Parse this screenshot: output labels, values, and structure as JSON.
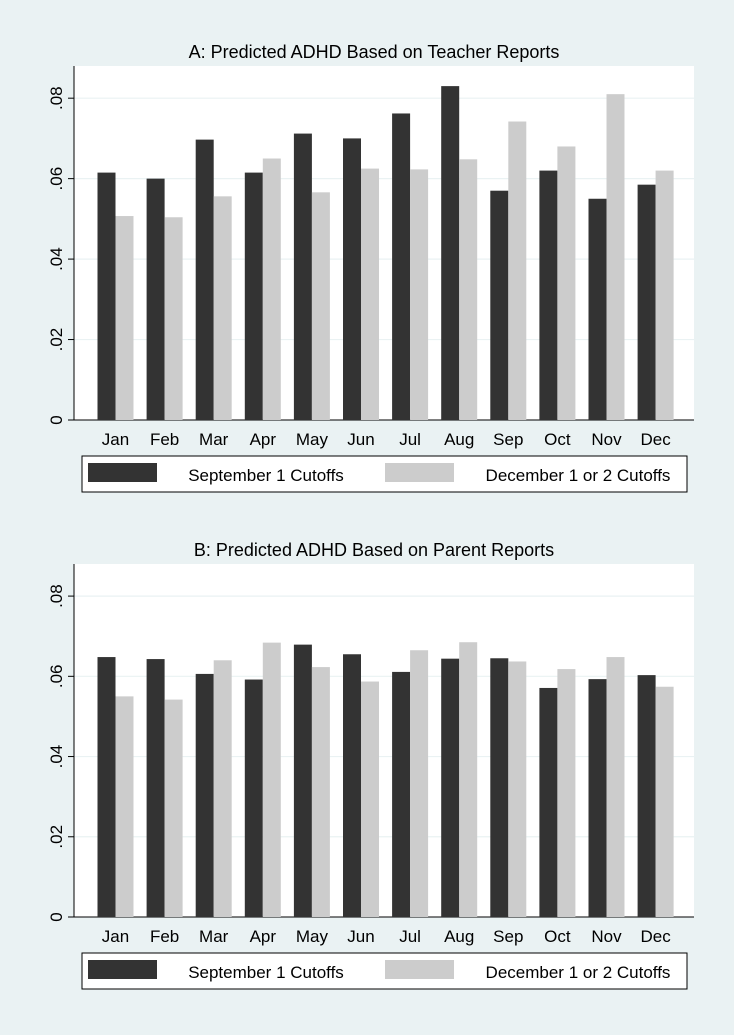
{
  "chart_data": [
    {
      "type": "bar",
      "title": "A: Predicted ADHD Based on Teacher Reports",
      "categories": [
        "Jan",
        "Feb",
        "Mar",
        "Apr",
        "May",
        "Jun",
        "Jul",
        "Aug",
        "Sep",
        "Oct",
        "Nov",
        "Dec"
      ],
      "ylim": [
        0,
        0.088
      ],
      "yticks": [
        0,
        0.02,
        0.04,
        0.06,
        0.08
      ],
      "ytick_labels": [
        "0",
        ".02",
        ".04",
        ".06",
        ".08"
      ],
      "grid": true,
      "legend_position": "bottom",
      "series": [
        {
          "name": "September 1 Cutoffs",
          "color": "#333333",
          "values": [
            0.0615,
            0.06,
            0.0697,
            0.0615,
            0.0712,
            0.07,
            0.0762,
            0.083,
            0.057,
            0.062,
            0.055,
            0.0585
          ]
        },
        {
          "name": "December 1 or 2 Cutoffs",
          "color": "#cccccc",
          "values": [
            0.0507,
            0.0504,
            0.0556,
            0.065,
            0.0566,
            0.0625,
            0.0623,
            0.0648,
            0.0742,
            0.068,
            0.081,
            0.062
          ]
        }
      ]
    },
    {
      "type": "bar",
      "title": "B: Predicted ADHD Based on Parent Reports",
      "categories": [
        "Jan",
        "Feb",
        "Mar",
        "Apr",
        "May",
        "Jun",
        "Jul",
        "Aug",
        "Sep",
        "Oct",
        "Nov",
        "Dec"
      ],
      "ylim": [
        0,
        0.088
      ],
      "yticks": [
        0,
        0.02,
        0.04,
        0.06,
        0.08
      ],
      "ytick_labels": [
        "0",
        ".02",
        ".04",
        ".06",
        ".08"
      ],
      "grid": true,
      "legend_position": "bottom",
      "series": [
        {
          "name": "September 1 Cutoffs",
          "color": "#333333",
          "values": [
            0.0648,
            0.0643,
            0.0606,
            0.0592,
            0.0679,
            0.0655,
            0.0611,
            0.0644,
            0.0645,
            0.0571,
            0.0593,
            0.0603
          ]
        },
        {
          "name": "December 1 or 2 Cutoffs",
          "color": "#cccccc",
          "values": [
            0.055,
            0.0542,
            0.064,
            0.0684,
            0.0623,
            0.0587,
            0.0665,
            0.0685,
            0.0637,
            0.0618,
            0.0648,
            0.0574
          ]
        }
      ]
    }
  ]
}
